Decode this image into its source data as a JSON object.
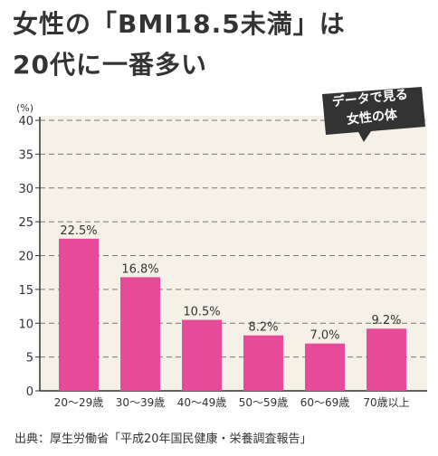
{
  "title": {
    "line1": "女性の「BMI18.5未満」は",
    "line2": "20代に一番多い"
  },
  "badge": {
    "line1": "データで見る",
    "line2": "女性の体"
  },
  "source": "出典：厚生労働省「平成20年国民健康・栄養調査報告」",
  "colors": {
    "bar": "#e84a9a",
    "plot_background": "#f6f1e7",
    "badge": "#333333"
  },
  "chart_data": {
    "type": "bar",
    "unit_label": "(%)",
    "categories": [
      "20～29歳",
      "30～39歳",
      "40～49歳",
      "50～59歳",
      "60～69歳",
      "70歳以上"
    ],
    "values": [
      22.5,
      16.8,
      10.5,
      8.2,
      7.0,
      9.2
    ],
    "data_labels": [
      "22.5%",
      "16.8%",
      "10.5%",
      "8.2%",
      "7.0%",
      "9.2%"
    ],
    "ylim": [
      0,
      40
    ],
    "yticks": [
      0,
      5,
      10,
      15,
      20,
      25,
      30,
      35,
      40
    ],
    "grid": true,
    "xlabel": "",
    "ylabel": ""
  }
}
